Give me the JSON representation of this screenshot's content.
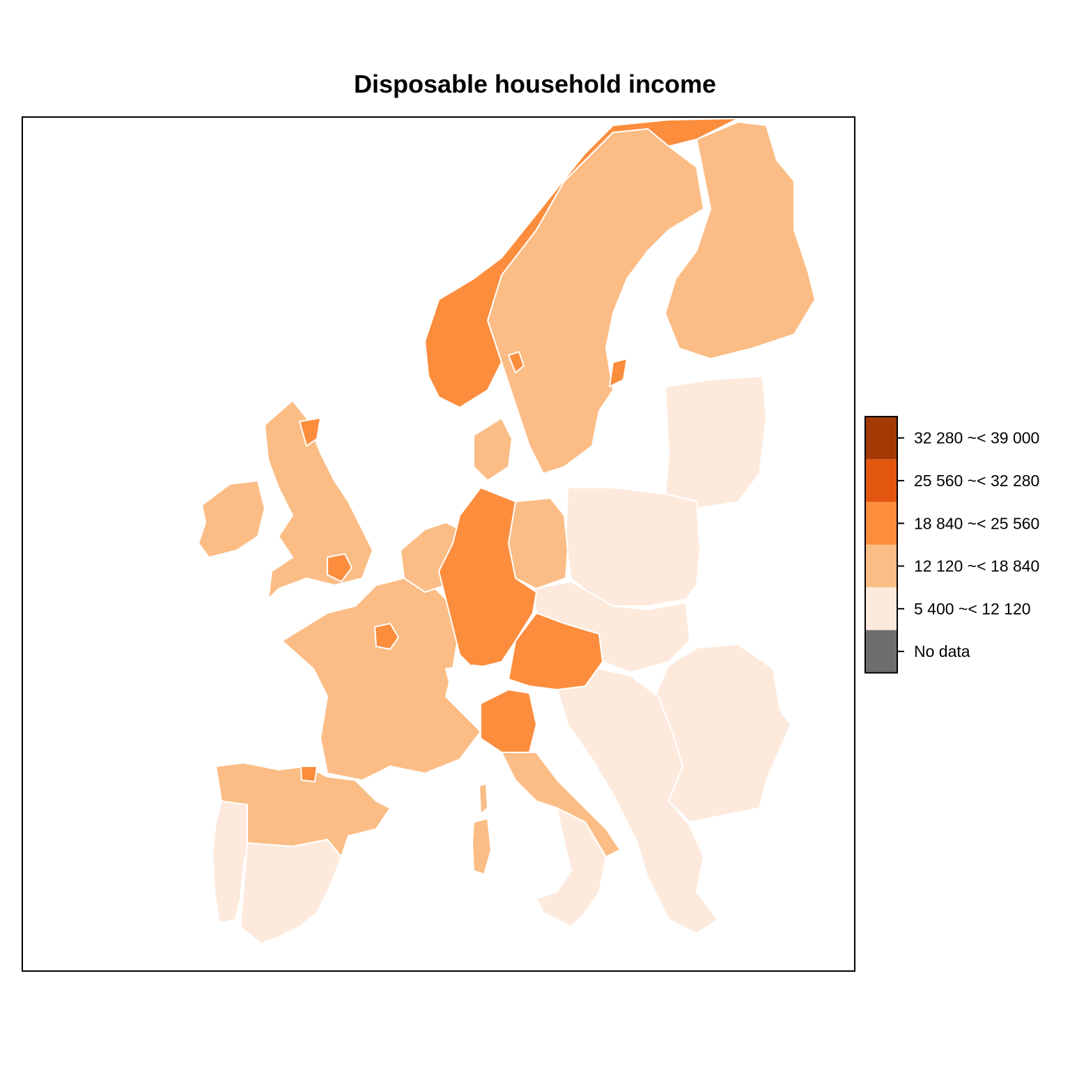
{
  "title": "Disposable household income",
  "legend": {
    "classes": [
      {
        "label": "32 280 ~< 39 000",
        "color": "#a33a05"
      },
      {
        "label": "25 560 ~< 32 280",
        "color": "#e3560f"
      },
      {
        "label": "18 840 ~< 25 560",
        "color": "#fc8d3d"
      },
      {
        "label": "12 120 ~< 18 840",
        "color": "#fbbd85"
      },
      {
        "label": "5 400 ~< 12 120",
        "color": "#fdeadc"
      },
      {
        "label": "No data",
        "color": "#6e6e6e"
      }
    ]
  },
  "colors": {
    "border": "#ffffff",
    "frame": "#000000",
    "sea": "#ffffff"
  },
  "regions": [
    {
      "name": "Norway",
      "class": "18 840 ~< 25 560"
    },
    {
      "name": "Sweden",
      "class": "12 120 ~< 18 840"
    },
    {
      "name": "Finland",
      "class": "12 120 ~< 18 840"
    },
    {
      "name": "Baltic states",
      "class": "5 400 ~< 12 120"
    },
    {
      "name": "Poland",
      "class": "5 400 ~< 12 120"
    },
    {
      "name": "Czechia, Slovakia, Hungary",
      "class": "5 400 ~< 12 120"
    },
    {
      "name": "Romania, Bulgaria",
      "class": "5 400 ~< 12 120"
    },
    {
      "name": "Western Balkans, Greece",
      "class": "5 400 ~< 12 120"
    },
    {
      "name": "Portugal",
      "class": "5 400 ~< 12 120"
    },
    {
      "name": "Southern Spain",
      "class": "5 400 ~< 12 120"
    },
    {
      "name": "Southern Italy",
      "class": "5 400 ~< 12 120"
    },
    {
      "name": "Northern Spain",
      "class": "12 120 ~< 18 840"
    },
    {
      "name": "France",
      "class": "12 120 ~< 18 840"
    },
    {
      "name": "United Kingdom",
      "class": "12 120 ~< 18 840"
    },
    {
      "name": "Ireland",
      "class": "12 120 ~< 18 840"
    },
    {
      "name": "Benelux",
      "class": "12 120 ~< 18 840"
    },
    {
      "name": "Denmark",
      "class": "12 120 ~< 18 840"
    },
    {
      "name": "Northern Germany",
      "class": "12 120 ~< 18 840"
    },
    {
      "name": "Central Italy",
      "class": "12 120 ~< 18 840"
    },
    {
      "name": "Sardinia",
      "class": "12 120 ~< 18 840"
    },
    {
      "name": "Corsica",
      "class": "12 120 ~< 18 840"
    },
    {
      "name": "Germany",
      "class": "18 840 ~< 25 560"
    },
    {
      "name": "Austria",
      "class": "18 840 ~< 25 560"
    },
    {
      "name": "Northern Italy",
      "class": "18 840 ~< 25 560"
    },
    {
      "name": "Ile-de-France",
      "class": "18 840 ~< 25 560"
    },
    {
      "name": "London",
      "class": "18 840 ~< 25 560"
    },
    {
      "name": "North East Scotland",
      "class": "18 840 ~< 25 560"
    },
    {
      "name": "Oslo",
      "class": "18 840 ~< 25 560"
    },
    {
      "name": "Stockholm",
      "class": "18 840 ~< 25 560"
    },
    {
      "name": "Pais Vasco",
      "class": "18 840 ~< 25 560"
    },
    {
      "name": "Switzerland",
      "class": "No data"
    }
  ]
}
